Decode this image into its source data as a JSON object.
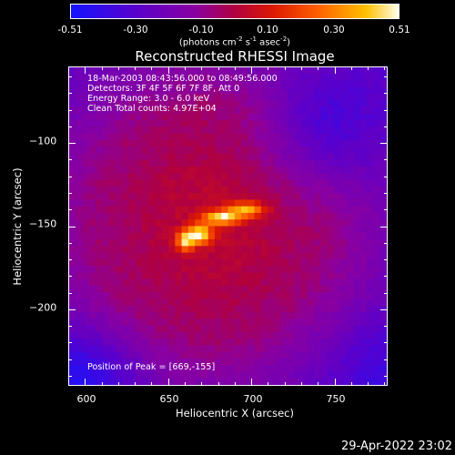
{
  "colorbar": {
    "ticks": [
      "-0.51",
      "-0.30",
      "-0.10",
      "0.10",
      "0.30",
      "0.51"
    ],
    "unit_text": "(photons cm",
    "unit_sup1": "-2",
    "unit_mid": " s",
    "unit_sup2": "-1",
    "unit_mid2": " asec",
    "unit_sup3": "-2",
    "unit_end": ")",
    "colors": [
      "#1414ff",
      "#8a00a0",
      "#dd1a00",
      "#ff6400",
      "#ffc000",
      "#ffffe8"
    ]
  },
  "plot": {
    "title": "Reconstructed RHESSI Image",
    "info_lines": [
      "18-Mar-2003 08:43:56.000 to 08:49:56.000",
      "Detectors: 3F 4F 5F 6F 7F 8F, Att 0",
      "Energy Range: 3.0 - 6.0 keV",
      "Clean     Total counts: 4.97E+04"
    ],
    "peak_text": "Position of Peak = [669,-155]"
  },
  "timestamp": "29-Apr-2022 23:02",
  "chart_data": {
    "type": "heatmap",
    "title": "Reconstructed RHESSI Image",
    "xlabel": "Heliocentric X (arcsec)",
    "ylabel": "Heliocentric Y (arcsec)",
    "xlim": [
      590,
      782
    ],
    "ylim": [
      -246,
      -54
    ],
    "xticks": [
      600,
      650,
      700,
      750
    ],
    "yticks": [
      -100,
      -150,
      -200
    ],
    "colorbar_range": [
      -0.51,
      0.51
    ],
    "peak_position": [
      669,
      -155
    ],
    "sources": [
      {
        "x": 742,
        "y": -92,
        "value": -0.2,
        "sx": 25,
        "sy": 25
      },
      {
        "x": 778,
        "y": -236,
        "value": -0.1,
        "sx": 30,
        "sy": 25
      },
      {
        "x": 598,
        "y": -240,
        "value": -0.2,
        "sx": 25,
        "sy": 20
      },
      {
        "x": 676,
        "y": -148,
        "value": 0.15,
        "sx": 48,
        "sy": 52
      },
      {
        "x": 669,
        "y": -155,
        "value": 0.51,
        "sx": 5,
        "sy": 4
      },
      {
        "x": 682,
        "y": -145,
        "value": 0.46,
        "sx": 8,
        "sy": 3
      },
      {
        "x": 697,
        "y": -140,
        "value": 0.38,
        "sx": 8,
        "sy": 3
      },
      {
        "x": 660,
        "y": -159,
        "value": 0.4,
        "sx": 4,
        "sy": 4
      }
    ]
  }
}
